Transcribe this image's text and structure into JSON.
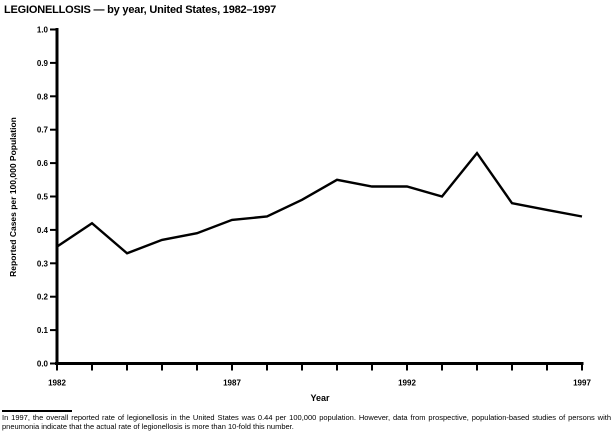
{
  "page": {
    "background_color": "#ffffff",
    "foreground_color": "#000000"
  },
  "chart_data": {
    "type": "line",
    "title": "LEGIONELLOSIS — by year, United States, 1982–1997",
    "xlabel": "Year",
    "ylabel": "Reported Cases per 100,000 Population",
    "x": [
      1982,
      1983,
      1984,
      1985,
      1986,
      1987,
      1988,
      1989,
      1990,
      1991,
      1992,
      1993,
      1994,
      1995,
      1996,
      1997
    ],
    "series": [
      {
        "name": "Reported Cases per 100,000 Population",
        "values": [
          0.35,
          0.42,
          0.33,
          0.37,
          0.39,
          0.43,
          0.44,
          0.49,
          0.55,
          0.53,
          0.53,
          0.5,
          0.63,
          0.48,
          0.46,
          0.44
        ]
      }
    ],
    "ylim": [
      0.0,
      1.0
    ],
    "ytick_step": 0.1,
    "xticks_labeled": [
      1982,
      1987,
      1992,
      1997
    ],
    "grid": false,
    "legend_position": "none",
    "line_color": "#000000"
  },
  "footnote": {
    "text": "In 1997, the overall reported rate of legionellosis in the United States was 0.44 per 100,000 population. However, data from prospective, population-based studies of persons with pneumonia indicate that the actual rate of legionellosis is more than 10-fold this number."
  }
}
